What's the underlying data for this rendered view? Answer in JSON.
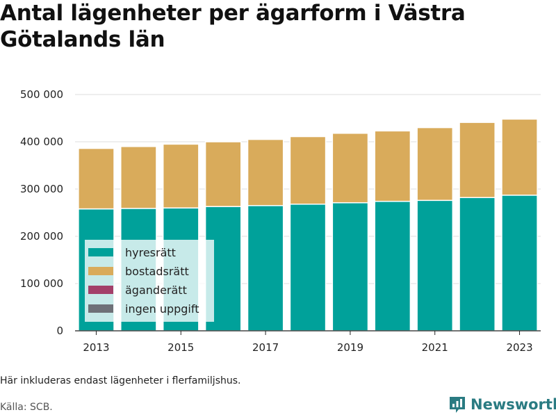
{
  "title": "Antal lägenheter per ägarform i Västra Götalands län",
  "note": "Här inkluderas endast lägenheter i flerfamiljshus.",
  "source": "Källa: SCB.",
  "brand": "Newsworthy",
  "chart_data": {
    "type": "bar",
    "stacked": true,
    "categories": [
      "2013",
      "2014",
      "2015",
      "2016",
      "2017",
      "2018",
      "2019",
      "2020",
      "2021",
      "2022",
      "2023"
    ],
    "x_tick_labels": [
      "2013",
      "2015",
      "2017",
      "2019",
      "2021",
      "2023"
    ],
    "y_tick_labels": [
      "0",
      "100 000",
      "200 000",
      "300 000",
      "400 000",
      "500 000"
    ],
    "ylim": [
      0,
      500000
    ],
    "grid": true,
    "legend_position": "bottom-left inside",
    "series": [
      {
        "name": "hyresrätt",
        "color": "#00a19a",
        "values": [
          258000,
          259000,
          260000,
          263000,
          265000,
          268000,
          271000,
          274000,
          276000,
          282000,
          287000
        ]
      },
      {
        "name": "bostadsrätt",
        "color": "#d9ab5b",
        "values": [
          128000,
          131000,
          135000,
          137000,
          140000,
          143000,
          147000,
          149000,
          154000,
          159000,
          161000
        ]
      },
      {
        "name": "äganderätt",
        "color": "#a3406a",
        "values": [
          0,
          0,
          0,
          0,
          0,
          0,
          0,
          0,
          0,
          0,
          0
        ]
      },
      {
        "name": "ingen uppgift",
        "color": "#6e7178",
        "values": [
          0,
          0,
          0,
          0,
          0,
          0,
          0,
          0,
          0,
          0,
          0
        ]
      }
    ]
  }
}
